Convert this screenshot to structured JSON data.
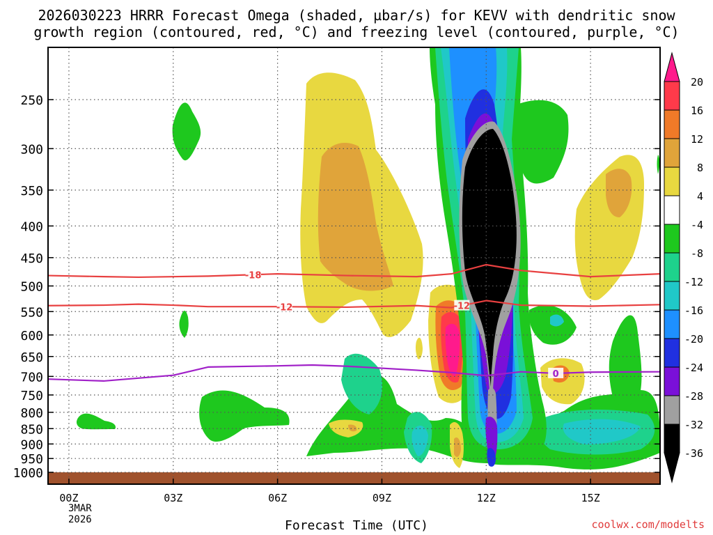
{
  "page": {
    "title_line1": "2026030223 HRRR Forecast Omega (shaded, µbar/s) for KEVV with dendritic snow",
    "title_line2": "growth region (contoured, red, °C) and freezing level (contoured, purple, °C)",
    "credit": "coolwx.com/modelts",
    "date_line1": "3MAR",
    "date_line2": "2026"
  },
  "chart_data": {
    "type": "heatmap",
    "title": "2026030223 HRRR Forecast Omega (shaded, µbar/s) for KEVV with dendritic snow growth region (contoured, red, °C) and freezing level (contoured, purple, °C)",
    "xlabel": "Forecast Time (UTC)",
    "ylabel": "",
    "x_ticks": [
      "00Z",
      "03Z",
      "06Z",
      "09Z",
      "12Z",
      "15Z"
    ],
    "x_tick_hours": [
      0,
      3,
      6,
      9,
      12,
      15
    ],
    "xlim_hours": [
      -0.6,
      17.0
    ],
    "y_ticks": [
      250,
      300,
      350,
      400,
      450,
      500,
      550,
      600,
      650,
      700,
      750,
      800,
      850,
      900,
      950,
      1000
    ],
    "ylim_hPa": [
      200,
      1000
    ],
    "colorbar": {
      "ticks": [
        "20",
        "16",
        "12",
        "8",
        "4",
        "-4",
        "-8",
        "-12",
        "-16",
        "-20",
        "-24",
        "-28",
        "-32",
        "-36"
      ],
      "bands": [
        {
          "range": [
            16,
            20
          ],
          "color": "#ff3a4a"
        },
        {
          "range": [
            12,
            16
          ],
          "color": "#f07a28"
        },
        {
          "range": [
            8,
            12
          ],
          "color": "#e0a43a"
        },
        {
          "range": [
            4,
            8
          ],
          "color": "#e8d840"
        },
        {
          "range": [
            -4,
            4
          ],
          "color": "#ffffff"
        },
        {
          "range": [
            -8,
            -4
          ],
          "color": "#1ec81e"
        },
        {
          "range": [
            -12,
            -8
          ],
          "color": "#1ed28c"
        },
        {
          "range": [
            -16,
            -12
          ],
          "color": "#20c8c8"
        },
        {
          "range": [
            -20,
            -16
          ],
          "color": "#1e90ff"
        },
        {
          "range": [
            -24,
            -20
          ],
          "color": "#2030e0"
        },
        {
          "range": [
            -28,
            -24
          ],
          "color": "#7a10d8"
        },
        {
          "range": [
            -32,
            -28
          ],
          "color": "#a0a0a0"
        },
        {
          "range": [
            -36,
            -32
          ],
          "color": "#000000"
        }
      ],
      "top_color": "#ff1a8c",
      "bottom_color": "#000000"
    },
    "contours": [
      {
        "label": "-18",
        "color": "#e84040",
        "unit": "°C",
        "points": [
          [
            -0.6,
            481
          ],
          [
            1.0,
            483
          ],
          [
            2.0,
            484
          ],
          [
            4.0,
            482
          ],
          [
            5.0,
            480
          ],
          [
            6.0,
            478
          ],
          [
            8.0,
            481
          ],
          [
            10.0,
            483
          ],
          [
            11.0,
            478
          ],
          [
            12.0,
            462
          ],
          [
            13.0,
            472
          ],
          [
            15.0,
            483
          ],
          [
            17.0,
            478
          ]
        ]
      },
      {
        "label": "-12",
        "color": "#e84040",
        "unit": "°C",
        "points": [
          [
            -0.6,
            538
          ],
          [
            1.0,
            537
          ],
          [
            2.0,
            535
          ],
          [
            3.0,
            537
          ],
          [
            4.0,
            540
          ],
          [
            6.0,
            540
          ],
          [
            8.0,
            541
          ],
          [
            10.0,
            538
          ],
          [
            11.0,
            542
          ],
          [
            12.0,
            528
          ],
          [
            13.0,
            537
          ],
          [
            15.0,
            539
          ],
          [
            17.0,
            536
          ]
        ]
      },
      {
        "label": "0",
        "color": "#a020c8",
        "unit": "°C",
        "points": [
          [
            -0.6,
            707
          ],
          [
            1.0,
            712
          ],
          [
            3.0,
            697
          ],
          [
            4.0,
            676
          ],
          [
            6.0,
            673
          ],
          [
            7.0,
            671
          ],
          [
            8.0,
            674
          ],
          [
            10.0,
            684
          ],
          [
            11.0,
            690
          ],
          [
            12.0,
            698
          ],
          [
            13.0,
            688
          ],
          [
            14.0,
            692
          ],
          [
            15.0,
            689
          ],
          [
            17.0,
            688
          ]
        ]
      }
    ],
    "omega_features": [
      {
        "name": "strong-ascent-core",
        "omega_max": -36,
        "center_hour": 12.0,
        "top_hPa": 270,
        "bottom_hPa": 570
      },
      {
        "name": "ascent-column",
        "omega_max": -28,
        "center_hour": 12.0,
        "top_hPa": 200,
        "bottom_hPa": 820
      },
      {
        "name": "descent-maximum",
        "omega_max": 20,
        "center_hour": 11.0,
        "top_hPa": 565,
        "bottom_hPa": 720
      },
      {
        "name": "upper-descent-band",
        "omega_max": 12,
        "center_hour": 7.3,
        "top_hPa": 235,
        "bottom_hPa": 590
      },
      {
        "name": "right-descent-band",
        "omega_max": 8,
        "center_hour": 15.7,
        "top_hPa": 300,
        "bottom_hPa": 540
      }
    ]
  }
}
